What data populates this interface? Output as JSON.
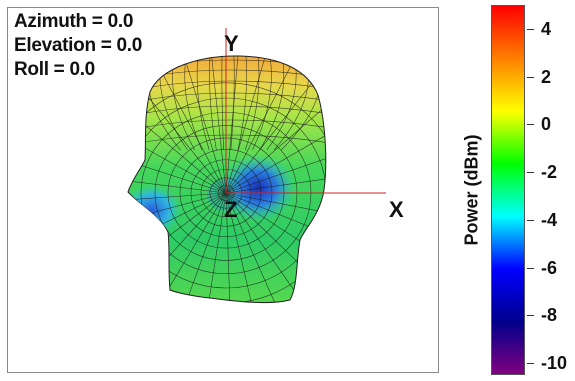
{
  "view": {
    "azimuth_text": "Azimuth = 0.0",
    "elevation_text": "Elevation = 0.0",
    "roll_text": "Roll = 0.0"
  },
  "axes": {
    "x": "X",
    "y": "Y",
    "z": "Z"
  },
  "colorbar": {
    "title": "Power (dBm)",
    "ticks": [
      "4",
      "2",
      "0",
      "-2",
      "-4",
      "-6",
      "-8",
      "-10"
    ],
    "range": [
      -10.5,
      5
    ],
    "colormap": "jet",
    "colors": [
      "#ff0000",
      "#ff8000",
      "#ffff00",
      "#00ff00",
      "#00ffff",
      "#0000ff",
      "#00008b",
      "#800080"
    ]
  },
  "pattern_colors": {
    "top": "#f0b040",
    "upper": "#9be045",
    "middle": "#3fd35c",
    "low": "#20c870",
    "null": "#2a4fd0",
    "mesh": "#1a1a1a",
    "axis": "#d02020"
  }
}
